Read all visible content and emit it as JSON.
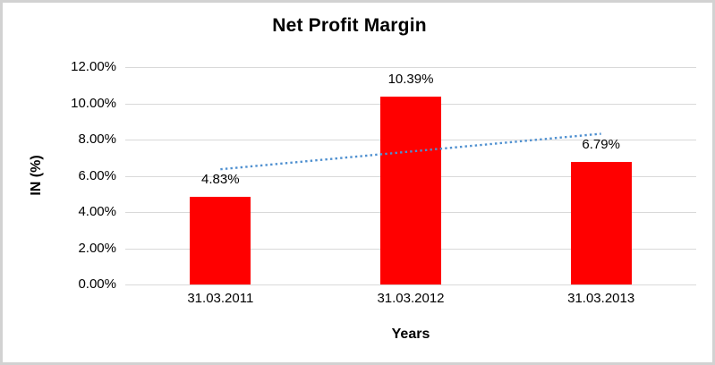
{
  "chart_data": {
    "type": "bar",
    "title": "Net Profit Margin",
    "xlabel": "Years",
    "ylabel": "IN (%)",
    "categories": [
      "31.03.2011",
      "31.03.2012",
      "31.03.2013"
    ],
    "values": [
      4.83,
      10.39,
      6.79
    ],
    "data_labels": [
      "4.83%",
      "10.39%",
      "6.79%"
    ],
    "ylim": [
      0,
      12
    ],
    "ytick_step": 2,
    "ytick_labels": [
      "0.00%",
      "2.00%",
      "4.00%",
      "6.00%",
      "8.00%",
      "10.00%",
      "12.00%"
    ],
    "grid": true,
    "legend": "none",
    "colors": {
      "bar": "#ff0000",
      "gridline": "#d9d9d9",
      "trendline": "#4f90d0",
      "text": "#000000"
    },
    "trendline": {
      "type": "linear",
      "style": "dotted",
      "color": "#4f90d0",
      "start_value": 6.36,
      "end_value": 8.32
    }
  }
}
